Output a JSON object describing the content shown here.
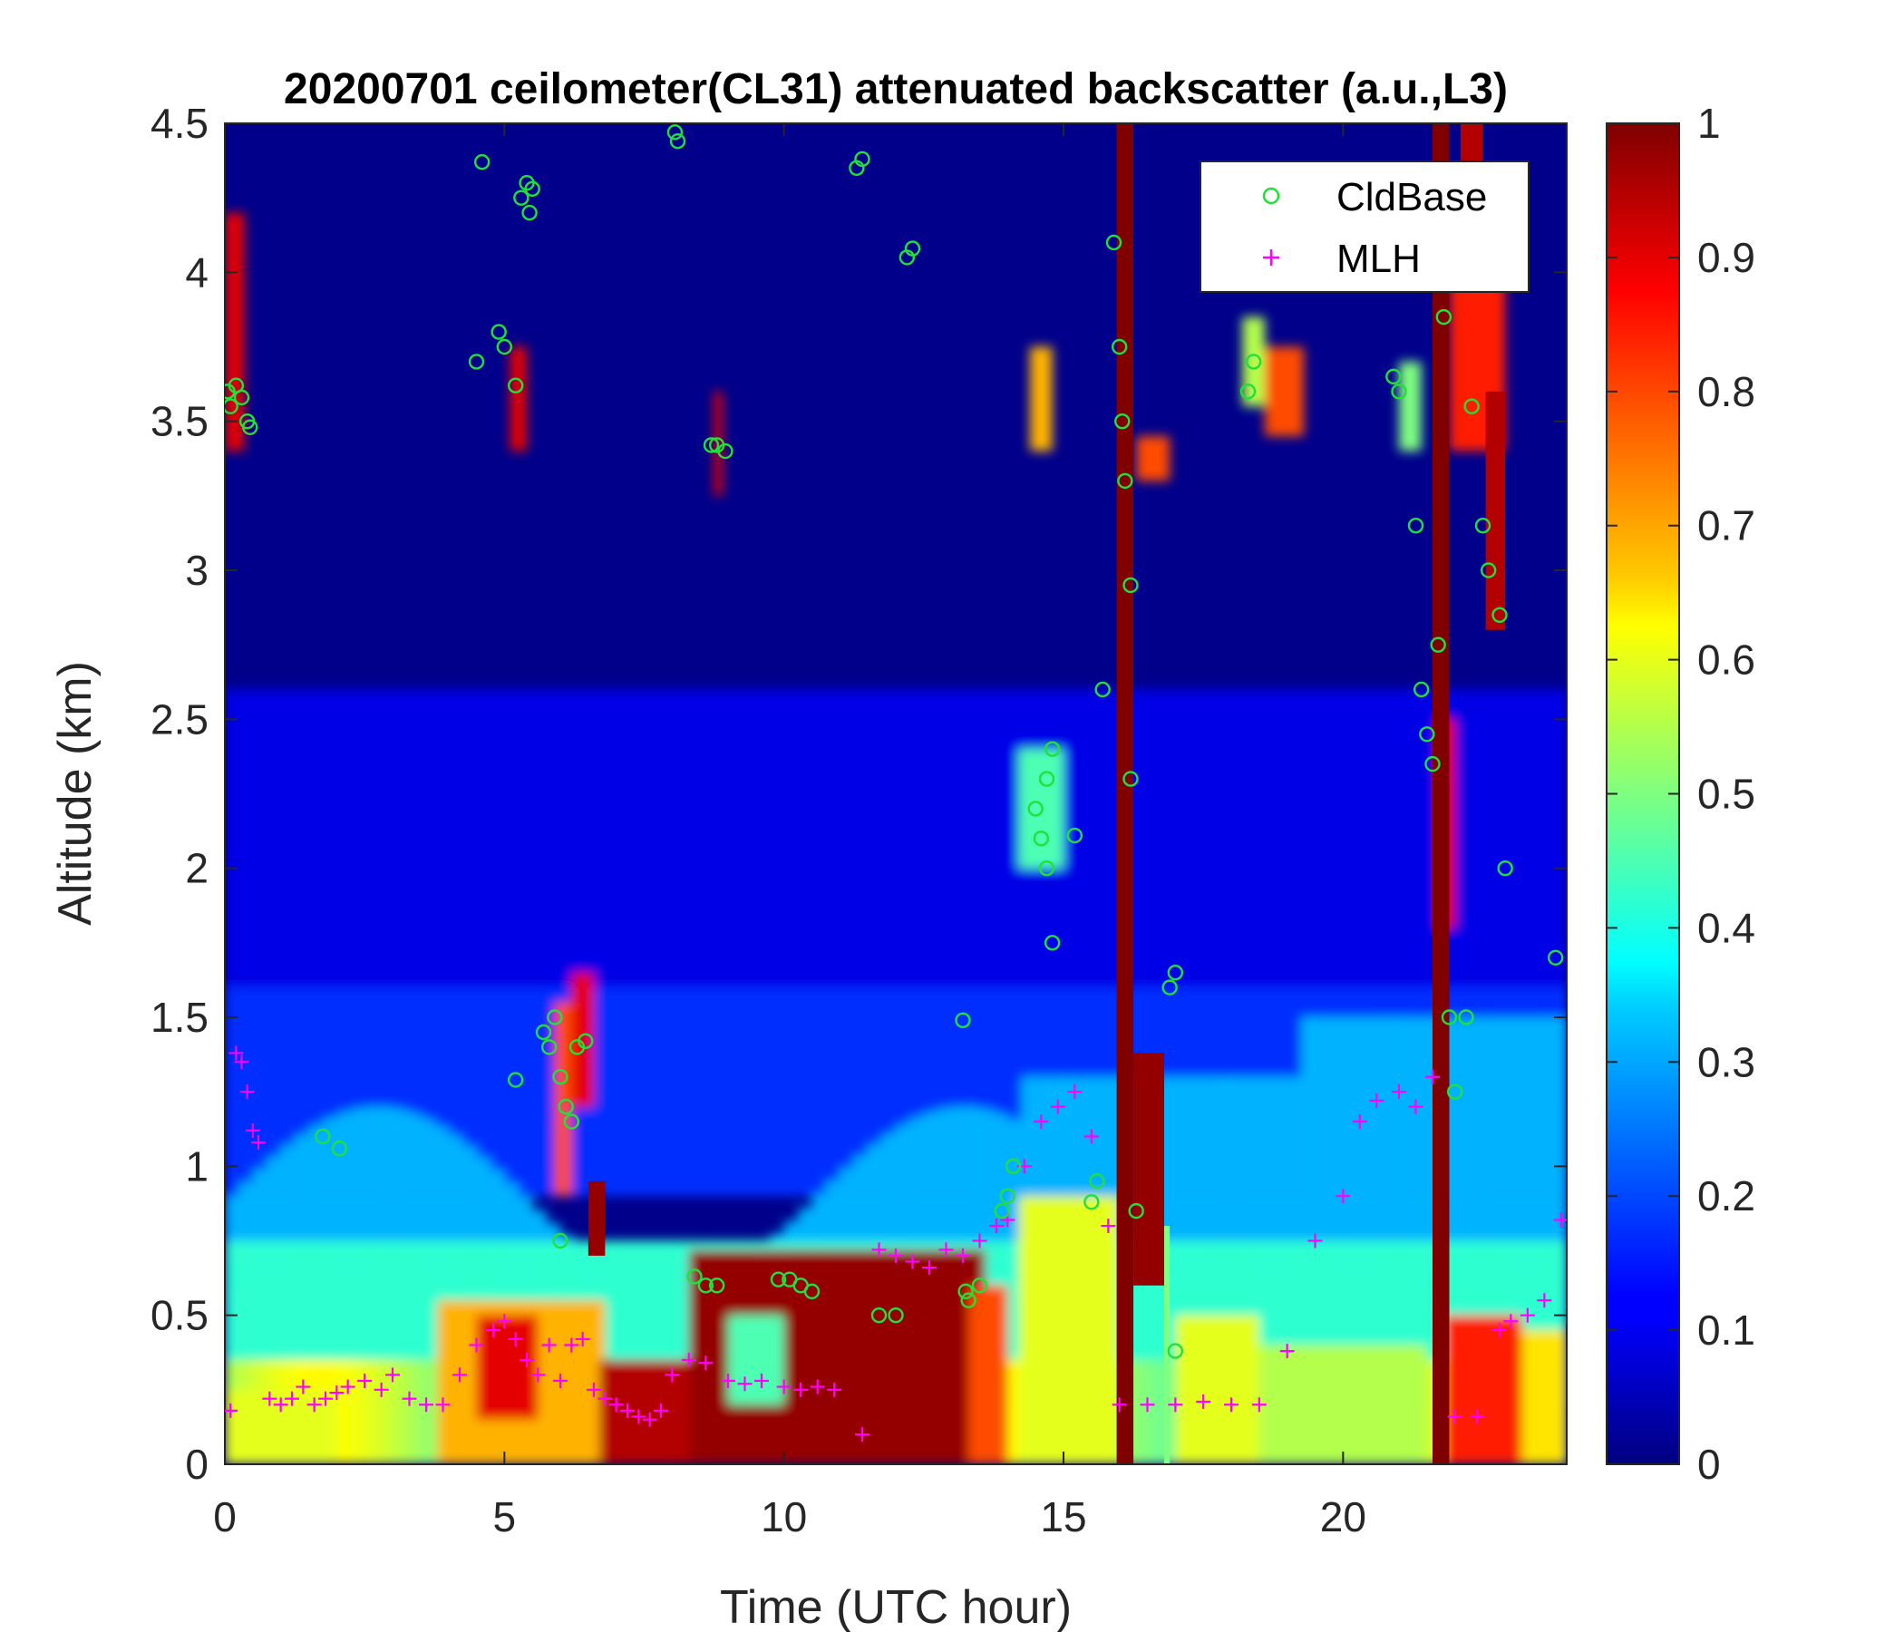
{
  "chart_data": {
    "type": "heatmap",
    "title": "20200701 ceilometer(CL31) attenuated backscatter (a.u.,L3)",
    "xlabel": "Time (UTC hour)",
    "ylabel": "Altitude (km)",
    "xlim": [
      0,
      24
    ],
    "ylim": [
      0,
      4.5
    ],
    "clim": [
      0,
      1
    ],
    "colormap": "jet",
    "x_ticks": [
      "0",
      "5",
      "10",
      "15",
      "20"
    ],
    "y_ticks": [
      "0",
      "0.5",
      "1",
      "1.5",
      "2",
      "2.5",
      "3",
      "3.5",
      "4",
      "4.5"
    ],
    "colorbar_ticks": [
      "0",
      "0.1",
      "0.2",
      "0.3",
      "0.4",
      "0.5",
      "0.6",
      "0.7",
      "0.8",
      "0.9",
      "1"
    ],
    "legend": {
      "position": "top-right",
      "entries": [
        {
          "label": "CldBase",
          "marker": "circle",
          "color": "#22e03a"
        },
        {
          "label": "MLH",
          "marker": "plus",
          "color": "#ff00ff"
        }
      ]
    },
    "series": [
      {
        "name": "CldBase",
        "type": "scatter",
        "color": "#22e03a",
        "x": [
          0.05,
          0.1,
          0.2,
          0.3,
          0.4,
          0.45,
          1.75,
          2.05,
          4.5,
          4.6,
          4.9,
          5.0,
          5.2,
          5.3,
          5.4,
          5.45,
          5.5,
          5.2,
          5.7,
          5.8,
          5.9,
          6.0,
          6.1,
          6.2,
          6.3,
          6.45,
          6.0,
          8.05,
          8.1,
          8.7,
          8.8,
          8.95,
          8.4,
          8.6,
          8.8,
          9.9,
          10.1,
          10.3,
          10.5,
          11.3,
          11.4,
          11.7,
          12.0,
          12.2,
          12.3,
          13.2,
          13.25,
          13.3,
          13.5,
          13.9,
          14.0,
          14.1,
          14.5,
          14.6,
          14.7,
          14.8,
          14.7,
          14.8,
          15.2,
          15.5,
          15.6,
          15.7,
          15.9,
          16.0,
          16.05,
          16.1,
          16.2,
          16.2,
          16.3,
          16.9,
          17.0,
          17.0,
          18.3,
          18.4,
          20.9,
          21.0,
          21.3,
          21.4,
          21.5,
          21.6,
          21.7,
          21.8,
          21.9,
          22.0,
          22.2,
          22.3,
          22.5,
          22.6,
          22.8,
          22.9,
          23.8
        ],
        "y": [
          3.6,
          3.55,
          3.62,
          3.58,
          3.5,
          3.48,
          1.1,
          1.06,
          3.7,
          4.37,
          3.8,
          3.75,
          3.62,
          4.25,
          4.3,
          4.2,
          4.28,
          1.29,
          1.45,
          1.4,
          1.5,
          1.3,
          1.2,
          1.15,
          1.4,
          1.42,
          0.75,
          4.47,
          4.44,
          3.42,
          3.42,
          3.4,
          0.63,
          0.6,
          0.6,
          0.62,
          0.62,
          0.6,
          0.58,
          4.35,
          4.38,
          0.5,
          0.5,
          4.05,
          4.08,
          1.49,
          0.58,
          0.55,
          0.6,
          0.85,
          0.9,
          1.0,
          2.2,
          2.1,
          2.3,
          2.4,
          2.0,
          1.75,
          2.11,
          0.88,
          0.95,
          2.6,
          4.1,
          3.75,
          3.5,
          3.3,
          2.95,
          2.3,
          0.85,
          1.6,
          1.65,
          0.38,
          3.6,
          3.7,
          3.65,
          3.6,
          3.15,
          2.6,
          2.45,
          2.35,
          2.75,
          3.85,
          1.5,
          1.25,
          1.5,
          3.55,
          3.15,
          3.0,
          2.85,
          2.0,
          1.7
        ],
        "note_points": "approximate sample of visible cloud-base markers"
      },
      {
        "name": "MLH",
        "type": "scatter",
        "color": "#ff00ff",
        "x": [
          0.1,
          0.2,
          0.3,
          0.4,
          0.5,
          0.6,
          0.8,
          1.0,
          1.2,
          1.4,
          1.6,
          1.8,
          2.0,
          2.2,
          2.5,
          2.8,
          3.0,
          3.3,
          3.6,
          3.9,
          4.2,
          4.5,
          4.8,
          5.0,
          5.2,
          5.4,
          5.6,
          5.8,
          6.0,
          6.2,
          6.4,
          6.6,
          6.8,
          7.0,
          7.2,
          7.4,
          7.6,
          7.8,
          8.0,
          8.3,
          8.6,
          9.0,
          9.3,
          9.6,
          10.0,
          10.3,
          10.6,
          10.9,
          11.4,
          11.7,
          12.0,
          12.3,
          12.6,
          12.9,
          13.2,
          13.5,
          13.8,
          14.0,
          14.3,
          14.6,
          14.9,
          15.2,
          15.5,
          15.8,
          16.0,
          16.5,
          17.0,
          17.5,
          18.0,
          18.5,
          19.0,
          19.5,
          20.0,
          20.3,
          20.6,
          21.0,
          21.3,
          21.6,
          22.0,
          22.4,
          22.8,
          23.0,
          23.3,
          23.6,
          23.9
        ],
        "y": [
          0.18,
          1.38,
          1.35,
          1.25,
          1.12,
          1.08,
          0.22,
          0.2,
          0.22,
          0.26,
          0.2,
          0.22,
          0.24,
          0.26,
          0.28,
          0.25,
          0.3,
          0.22,
          0.2,
          0.2,
          0.3,
          0.4,
          0.45,
          0.48,
          0.42,
          0.35,
          0.3,
          0.4,
          0.28,
          0.4,
          0.42,
          0.25,
          0.22,
          0.2,
          0.18,
          0.16,
          0.15,
          0.18,
          0.3,
          0.35,
          0.34,
          0.28,
          0.27,
          0.28,
          0.26,
          0.25,
          0.26,
          0.25,
          0.1,
          0.72,
          0.7,
          0.68,
          0.66,
          0.72,
          0.7,
          0.75,
          0.8,
          0.82,
          1.0,
          1.15,
          1.2,
          1.25,
          1.1,
          0.8,
          0.2,
          0.2,
          0.2,
          0.21,
          0.2,
          0.2,
          0.38,
          0.75,
          0.9,
          1.15,
          1.22,
          1.25,
          1.2,
          1.3,
          0.16,
          0.16,
          0.45,
          0.48,
          0.5,
          0.55,
          0.82
        ],
        "note_points": "approximate sample of visible mixing-layer-height markers"
      }
    ]
  }
}
